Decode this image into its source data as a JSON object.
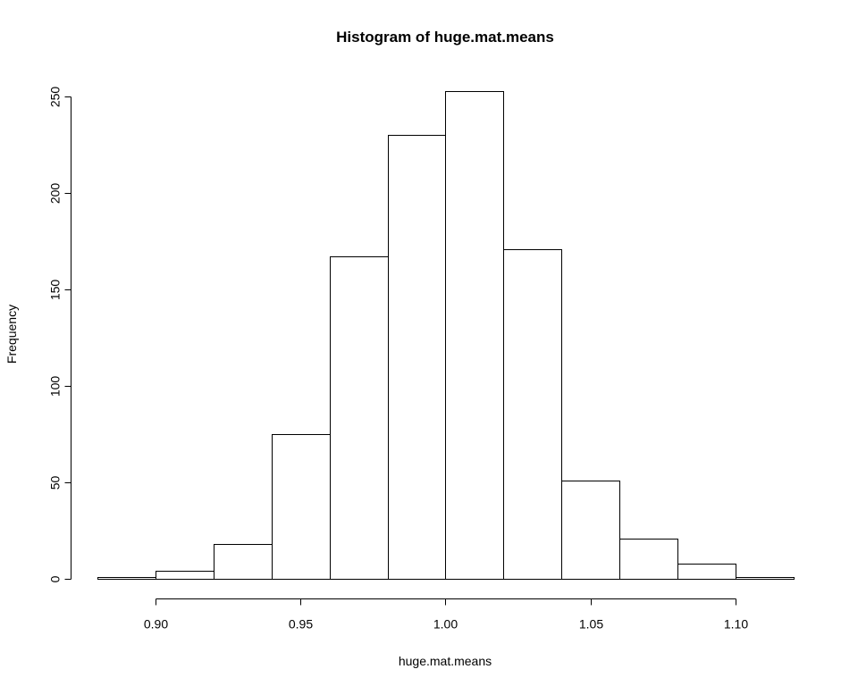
{
  "chart_data": {
    "type": "bar",
    "title": "Histogram of huge.mat.means",
    "xlabel": "huge.mat.means",
    "ylabel": "Frequency",
    "bins": [
      {
        "start": 0.88,
        "end": 0.9,
        "count": 1
      },
      {
        "start": 0.9,
        "end": 0.92,
        "count": 4
      },
      {
        "start": 0.92,
        "end": 0.94,
        "count": 18
      },
      {
        "start": 0.94,
        "end": 0.96,
        "count": 75
      },
      {
        "start": 0.96,
        "end": 0.98,
        "count": 167
      },
      {
        "start": 0.98,
        "end": 1.0,
        "count": 230
      },
      {
        "start": 1.0,
        "end": 1.02,
        "count": 253
      },
      {
        "start": 1.02,
        "end": 1.04,
        "count": 171
      },
      {
        "start": 1.04,
        "end": 1.06,
        "count": 51
      },
      {
        "start": 1.06,
        "end": 1.08,
        "count": 21
      },
      {
        "start": 1.08,
        "end": 1.1,
        "count": 8
      },
      {
        "start": 1.1,
        "end": 1.12,
        "count": 1
      }
    ],
    "xlim": [
      0.88,
      1.12
    ],
    "ylim": [
      0,
      250
    ],
    "x_ticks": [
      0.9,
      0.95,
      1.0,
      1.05,
      1.1
    ],
    "x_tick_labels": [
      "0.90",
      "0.95",
      "1.00",
      "1.05",
      "1.10"
    ],
    "y_ticks": [
      0,
      50,
      100,
      150,
      200,
      250
    ],
    "y_tick_labels": [
      "0",
      "50",
      "100",
      "150",
      "200",
      "250"
    ],
    "grid": false,
    "bar_fill": "#ffffff",
    "bar_stroke": "#000000"
  }
}
